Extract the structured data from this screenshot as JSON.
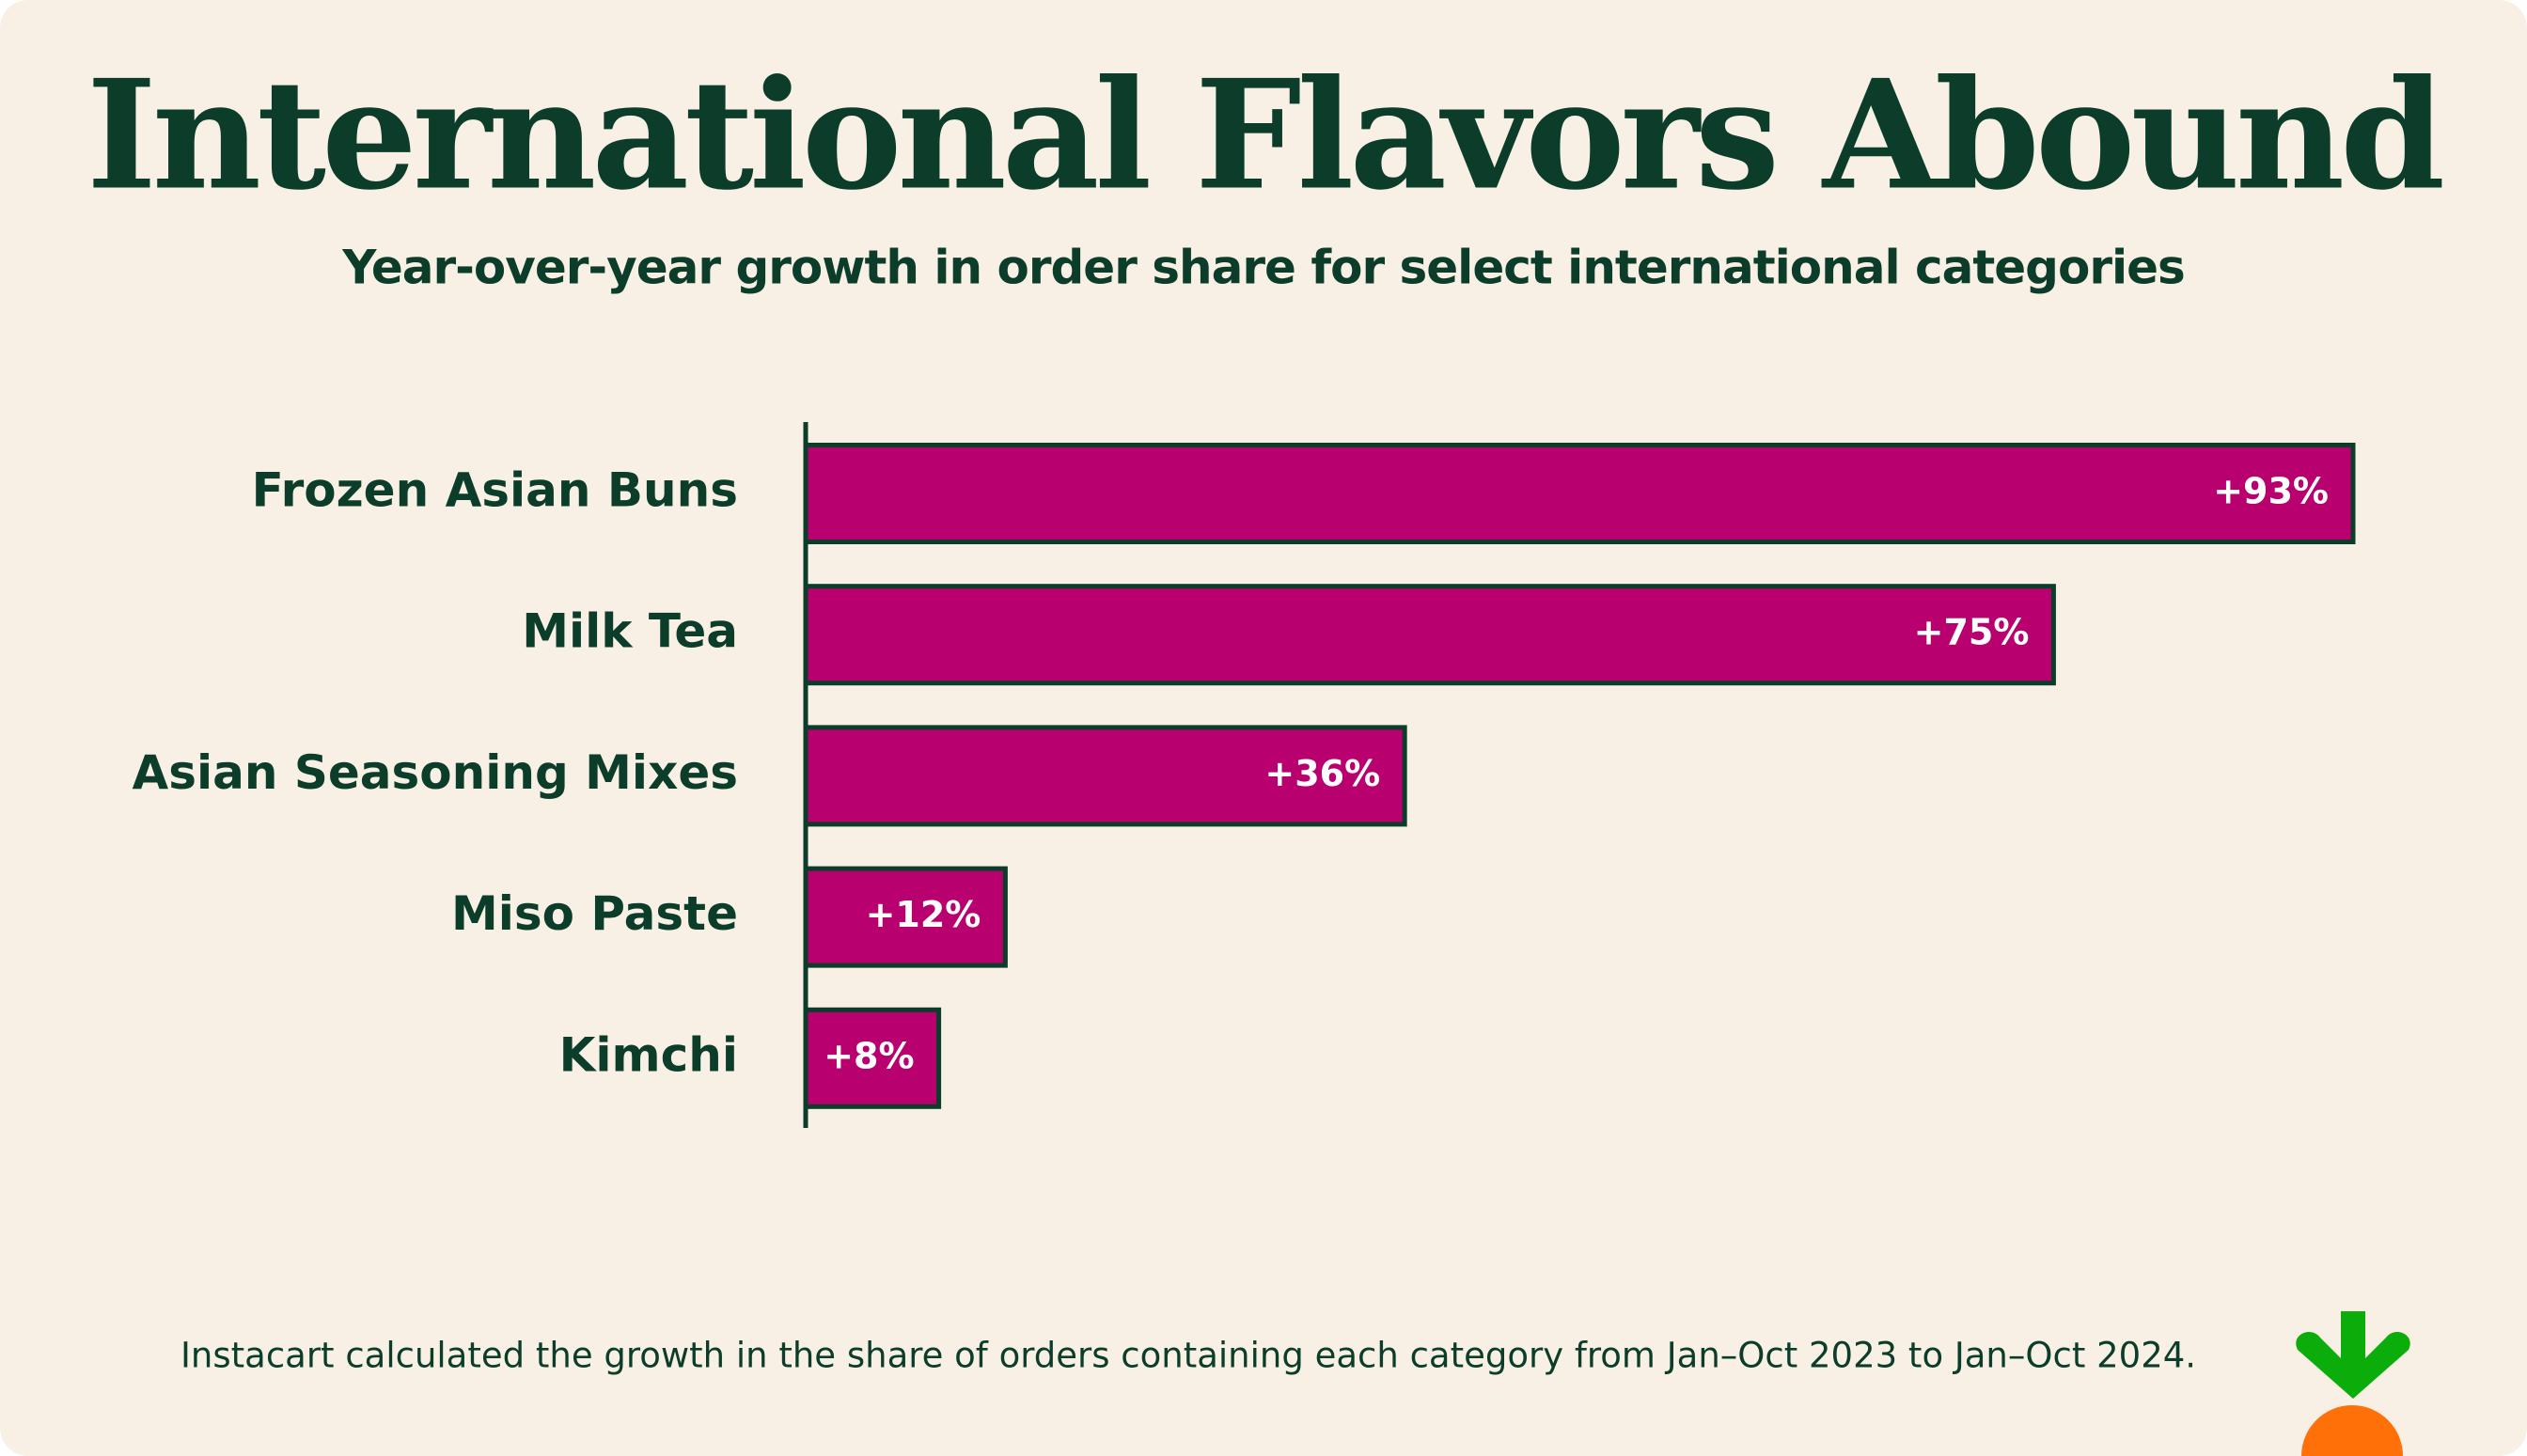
{
  "chart_data": {
    "type": "bar",
    "orientation": "horizontal",
    "title": "International Flavors Abound",
    "subtitle": "Year-over-year growth in order share for select international categories",
    "categories": [
      "Frozen Asian Buns",
      "Milk Tea",
      "Asian Seasoning Mixes",
      "Miso Paste",
      "Kimchi"
    ],
    "values": [
      93,
      75,
      36,
      12,
      8
    ],
    "value_labels": [
      "+93%",
      "+75%",
      "+36%",
      "+12%",
      "+8%"
    ],
    "color": "#b8006f",
    "footnote": "Instacart calculated the growth in the share of orders containing each category from Jan–Oct 2023 to Jan–Oct 2024."
  }
}
